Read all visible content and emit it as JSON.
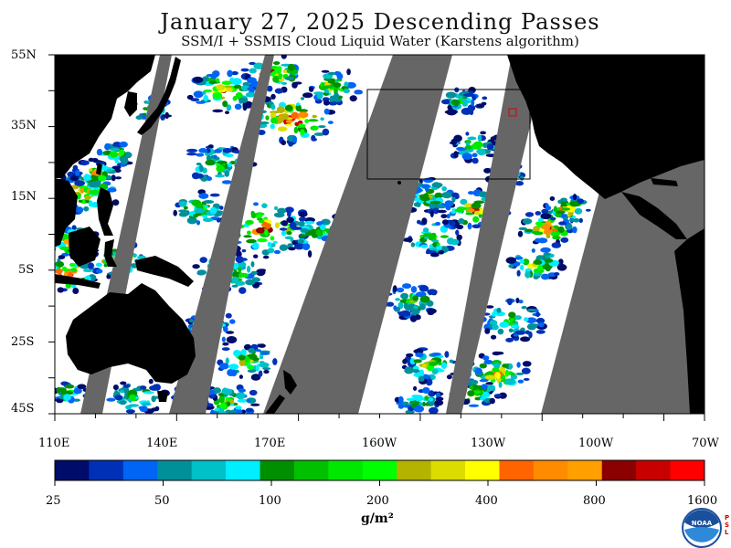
{
  "header": {
    "title": "January 27, 2025  Descending Passes",
    "subtitle": "SSM/I + SSMIS Cloud Liquid Water (Karstens algorithm)"
  },
  "map": {
    "lat_labels": [
      "55N",
      "35N",
      "15N",
      "5S",
      "25S",
      "45S"
    ],
    "lon_labels": [
      "110E",
      "140E",
      "170E",
      "160W",
      "130W",
      "100W",
      "70W"
    ],
    "colors": {
      "land": "#000000",
      "no_data": "#666666",
      "clear": "#ffffff",
      "box": "#000000",
      "marker": "#dd0000"
    }
  },
  "colorbar": {
    "colors": [
      "#000c6a",
      "#0030b5",
      "#0064f5",
      "#00909a",
      "#00c0c8",
      "#00eeff",
      "#008f00",
      "#00c000",
      "#00e800",
      "#00ff00",
      "#b4b400",
      "#dcdc00",
      "#ffff00",
      "#ff6400",
      "#ff8c00",
      "#ffa000",
      "#8b0000",
      "#c80000",
      "#ff0000"
    ],
    "tick_labels": [
      "25",
      "50",
      "100",
      "200",
      "400",
      "800",
      "1600"
    ],
    "unit": "g/m²"
  },
  "logo": {
    "text": "NOAA",
    "side_text": "P S L"
  }
}
